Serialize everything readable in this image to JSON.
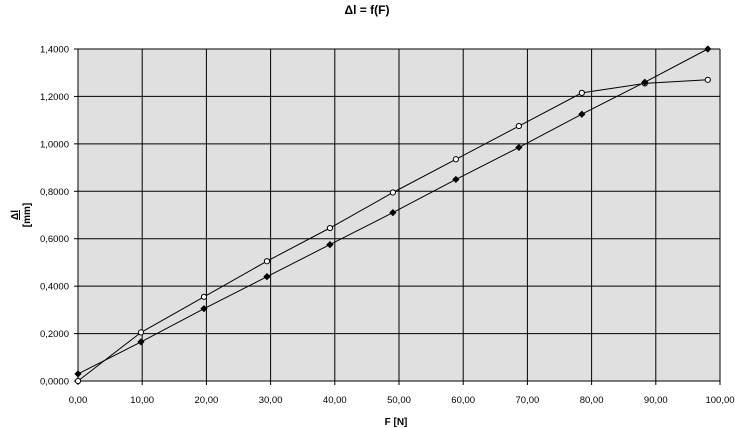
{
  "chart_data": {
    "type": "line",
    "title": "Δl = f(F)",
    "xlabel": "F [N]",
    "ylabel_main": "Δl",
    "ylabel_unit": "[mm]",
    "xlim": [
      0,
      100
    ],
    "ylim": [
      0,
      1.4
    ],
    "x_ticks": [
      "0,00",
      "10,00",
      "20,00",
      "30,00",
      "40,00",
      "50,00",
      "60,00",
      "70,00",
      "80,00",
      "90,00",
      "100,00"
    ],
    "y_ticks": [
      "0,0000",
      "0,2000",
      "0,4000",
      "0,6000",
      "0,8000",
      "1,0000",
      "1,2000",
      "1,4000"
    ],
    "grid": true,
    "plot_background": "#e0e0e0",
    "series": [
      {
        "marker": "open-circle",
        "color": "#000000",
        "x": [
          0,
          9.81,
          19.62,
          29.43,
          39.24,
          49.05,
          58.86,
          68.67,
          78.48,
          88.29,
          98.1
        ],
        "y": [
          0.0,
          0.205,
          0.355,
          0.505,
          0.645,
          0.795,
          0.935,
          1.075,
          1.215,
          1.255,
          1.27
        ]
      },
      {
        "marker": "filled-diamond",
        "color": "#000000",
        "x": [
          0,
          9.81,
          19.62,
          29.43,
          39.24,
          49.05,
          58.86,
          68.67,
          78.48,
          88.29,
          98.1
        ],
        "y": [
          0.03,
          0.165,
          0.305,
          0.44,
          0.575,
          0.71,
          0.85,
          0.985,
          1.125,
          1.26,
          1.4
        ]
      }
    ]
  }
}
